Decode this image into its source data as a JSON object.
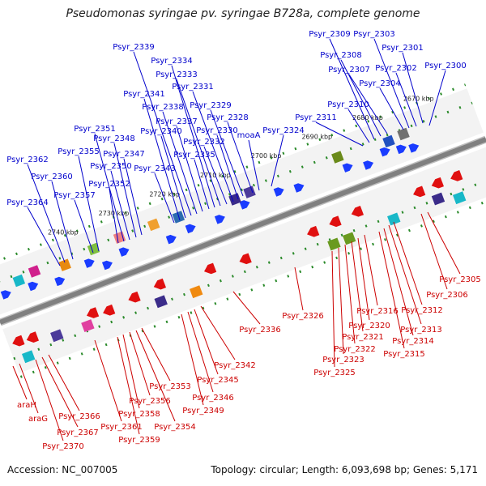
{
  "title": "Pseudomonas syringae pv. syringae B728a, complete genome",
  "accession": "Accession: NC_007005",
  "summary": "Topology: circular; Length: 6,093,698 bp; Genes: 5,171",
  "colors": {
    "forward_label": "#0000cc",
    "reverse_label": "#cc0000",
    "forward_arrow": "#1a3cff",
    "reverse_arrow": "#e01010",
    "backbone": "#808080",
    "tick": "#2a8a2a"
  },
  "ticks": [
    "2670 kbp",
    "2680 kbp",
    "2690 kbp",
    "2700 kbp",
    "2710 kbp",
    "2720 kbp",
    "2730 kbp",
    "2740 kbp"
  ],
  "forward_labels": [
    "Psyr_2300",
    "Psyr_2301",
    "Psyr_2302",
    "Psyr_2303",
    "Psyr_2304",
    "Psyr_2307",
    "Psyr_2308",
    "Psyr_2309",
    "Psyr_2310",
    "Psyr_2311",
    "Psyr_2324",
    "moaA",
    "Psyr_2328",
    "Psyr_2329",
    "Psyr_2330",
    "Psyr_2331",
    "Psyr_2332",
    "Psyr_2333",
    "Psyr_2334",
    "Psyr_2335",
    "Psyr_2337",
    "Psyr_2338",
    "Psyr_2339",
    "Psyr_2340",
    "Psyr_2341",
    "Psyr_2343",
    "Psyr_2347",
    "Psyr_2348",
    "Psyr_2350",
    "Psyr_2351",
    "Psyr_2352",
    "Psyr_2355",
    "Psyr_2357",
    "Psyr_2360",
    "Psyr_2362",
    "Psyr_2364"
  ],
  "reverse_labels": [
    "Psyr_2305",
    "Psyr_2306",
    "Psyr_2312",
    "Psyr_2313",
    "Psyr_2314",
    "Psyr_2315",
    "Psyr_2316",
    "Psyr_2320",
    "Psyr_2321",
    "Psyr_2322",
    "Psyr_2323",
    "Psyr_2325",
    "Psyr_2326",
    "Psyr_2336",
    "Psyr_2342",
    "Psyr_2345",
    "Psyr_2346",
    "Psyr_2349",
    "Psyr_2353",
    "Psyr_2354",
    "Psyr_2356",
    "Psyr_2358",
    "Psyr_2359",
    "Psyr_2361",
    "Psyr_2366",
    "Psyr_2367",
    "Psyr_2370",
    "araH",
    "araG"
  ]
}
